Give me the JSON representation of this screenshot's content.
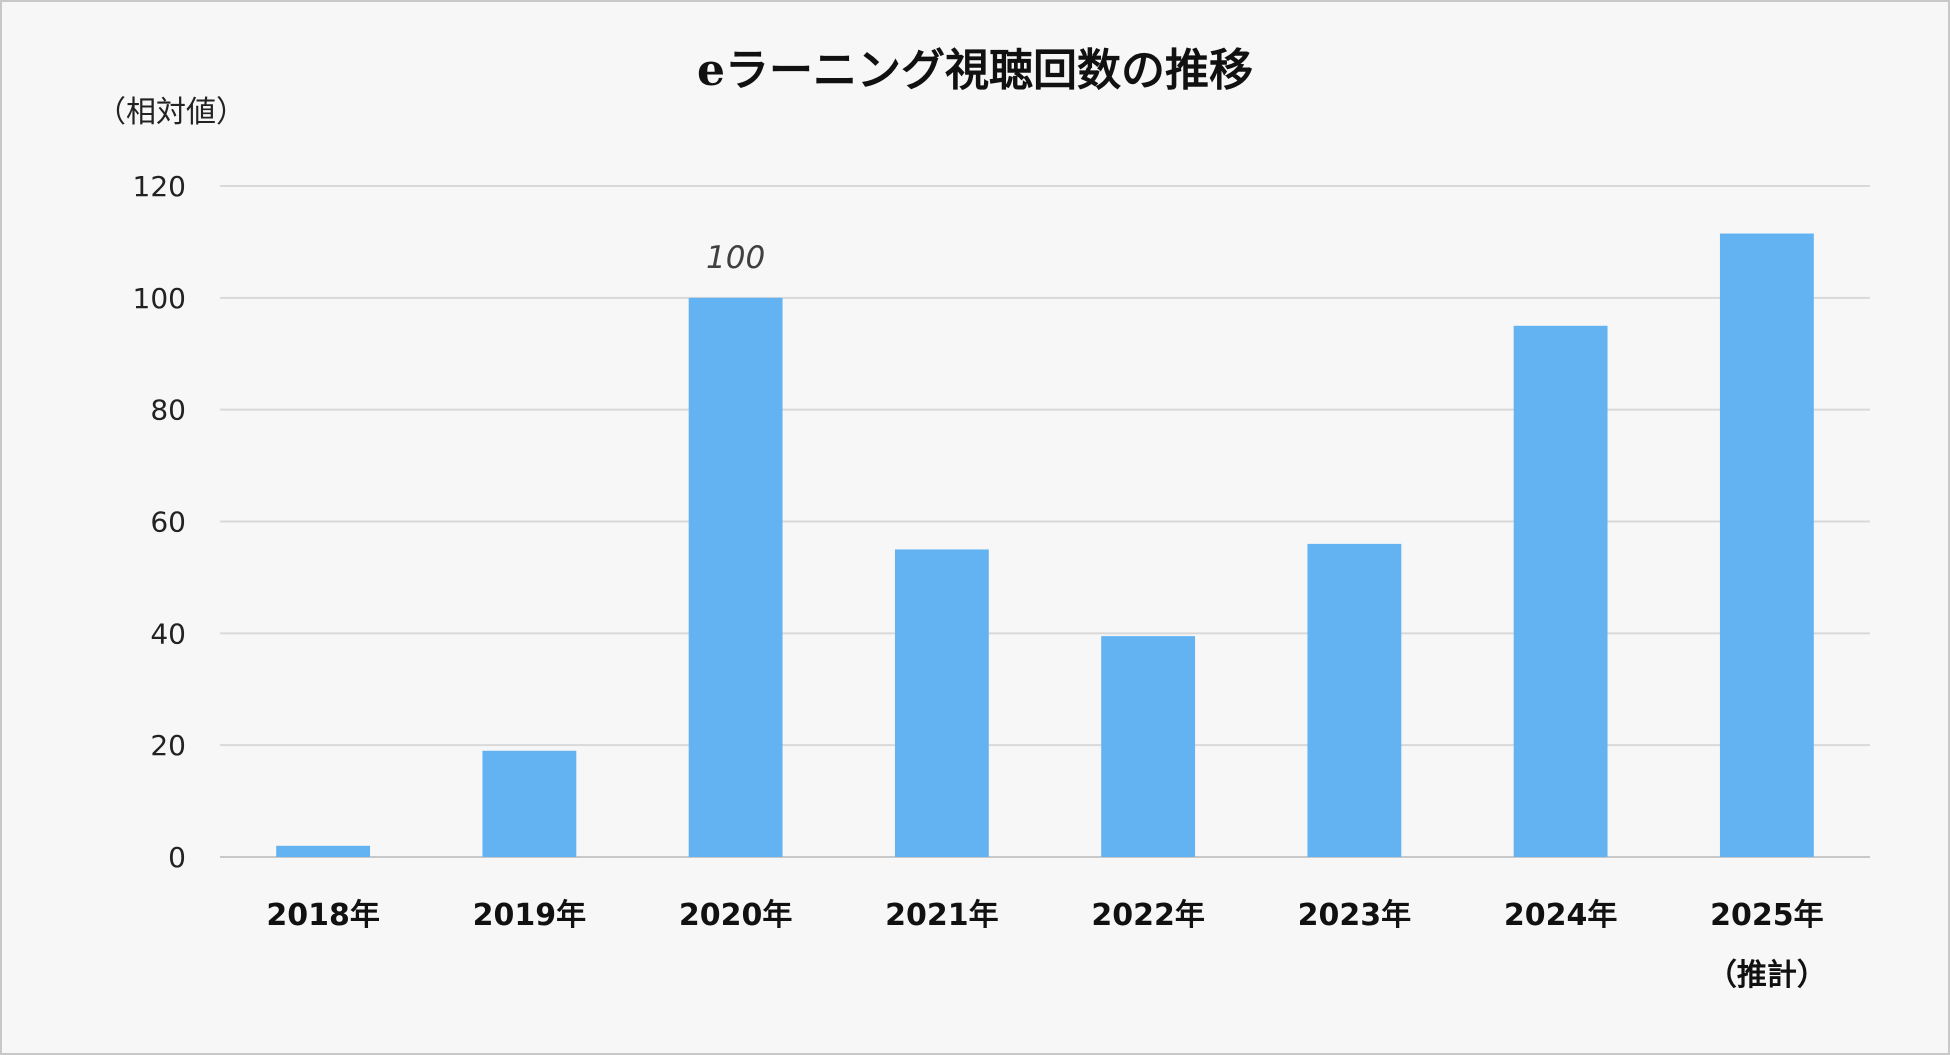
{
  "chart_data": {
    "type": "bar",
    "title": "eラーニング視聴回数の推移",
    "ylabel": "（相対値）",
    "xlabel": "",
    "categories": [
      [
        "2018年"
      ],
      [
        "2019年"
      ],
      [
        "2020年"
      ],
      [
        "2021年"
      ],
      [
        "2022年"
      ],
      [
        "2023年"
      ],
      [
        "2024年"
      ],
      [
        "2025年",
        "（推計）"
      ]
    ],
    "values": [
      2,
      19,
      100,
      55,
      39.5,
      56,
      95,
      111.5
    ],
    "data_labels": [
      {
        "index": 2,
        "text": "100"
      }
    ],
    "ylim": [
      0,
      120
    ],
    "yticks": [
      "0",
      "20",
      "40",
      "60",
      "80",
      "100",
      "120"
    ],
    "ytick_values": [
      0,
      20,
      40,
      60,
      80,
      100,
      120
    ],
    "grid": true,
    "legend": "none",
    "colors": {
      "bar": "#63b3f3",
      "background": "#f7f7f7",
      "grid": "#d9d9d9",
      "border": "#c8c8c8"
    }
  }
}
